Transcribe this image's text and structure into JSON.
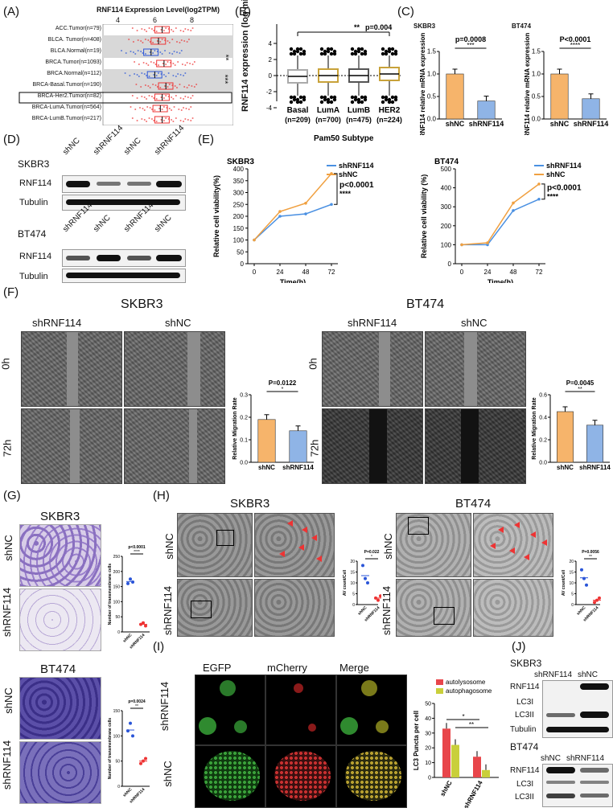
{
  "panels": {
    "A": "(A)",
    "B": "(B)",
    "C": "(C)",
    "D": "(D)",
    "E": "(E)",
    "F": "(F)",
    "G": "(G)",
    "H": "(H)",
    "I": "(I)",
    "J": "(J)"
  },
  "panelA": {
    "title": "RNF114 Expression Level(log2TPM)",
    "ticks": [
      "4",
      "6",
      "8"
    ],
    "rows": [
      "ACC.Tumor(n=79)",
      "BLCA. Tumor(n=408)",
      "BLCA.Normal(n=19)",
      "BRCA.Tumor(n=1093)",
      "BRCA.Normal(n=112)",
      "BRCA-Basal.Tumor(n=190)",
      "BRCA-Her2.Tumor(n=82)",
      "BRCA-LumA.Tumor(n=564)",
      "BRCA-LumB.Tumor(n=217)"
    ],
    "sig1": "**",
    "sig2": "***"
  },
  "panelB": {
    "ylabel": "RNF114 expression (log microarray)",
    "ticks": [
      "4",
      "2",
      "0",
      "-2",
      "-4"
    ],
    "groups": [
      "Basal",
      "LumA",
      "LumB",
      "HER2"
    ],
    "counts": [
      "(n=209)",
      "(n=700)",
      "(n=475)",
      "(n=224)"
    ],
    "xlabel": "Pam50 Subtype",
    "sig": "**",
    "p": "p=0.004"
  },
  "panelC": {
    "left": {
      "cell": "SKBR3",
      "ylabel": "RNF114 relative mRNA expression",
      "p": "p=0.0008",
      "sig": "***",
      "ticks": [
        "1.5",
        "1.0",
        "0.5",
        "0.0"
      ],
      "x": [
        "shNC",
        "shRNF114"
      ]
    },
    "right": {
      "cell": "BT474",
      "ylabel": "RNF114 relative mRNA expression",
      "p": "P<0.0001",
      "sig": "****",
      "ticks": [
        "1.5",
        "1.0",
        "0.5",
        "0.0"
      ],
      "x": [
        "shNC",
        "shRNF114"
      ]
    }
  },
  "panelD": {
    "skbr3": {
      "cell": "SKBR3",
      "cols": [
        "shNC",
        "shRNF114",
        "shNC",
        "shRNF114"
      ],
      "rows": [
        "RNF114",
        "Tubulin"
      ]
    },
    "bt474": {
      "cell": "BT474",
      "cols": [
        "shRNF114",
        "shNC",
        "shRNF114",
        "shNC"
      ],
      "rows": [
        "RNF114",
        "Tubulin"
      ]
    }
  },
  "panelE": {
    "left": {
      "cell": "SKBR3",
      "ylabel": "Relative cell viability(%)",
      "xlabel": "Time(h)",
      "legend": [
        "shRNF114",
        "shNC"
      ],
      "p": "p<0.0001",
      "sig": "****",
      "yticks": [
        "400",
        "350",
        "300",
        "250",
        "200",
        "150",
        "100",
        "50",
        "0"
      ],
      "xticks": [
        "0",
        "24",
        "48",
        "72"
      ]
    },
    "right": {
      "cell": "BT474",
      "ylabel": "Relative cell viability (%)",
      "xlabel": "Time(h)",
      "legend": [
        "shRNF114",
        "shNC"
      ],
      "p": "p<0.0001",
      "sig": "****",
      "yticks": [
        "500",
        "400",
        "300",
        "200",
        "100",
        "0"
      ],
      "xticks": [
        "0",
        "24",
        "48",
        "72"
      ]
    }
  },
  "panelF": {
    "left": {
      "cell": "SKBR3",
      "cols": [
        "shRNF114",
        "shNC"
      ],
      "rows": [
        "0h",
        "72h"
      ],
      "ylabel": "Relative Migration Rate",
      "p": "P=0.0122",
      "sig": "*",
      "yticks": [
        "0.3",
        "0.2",
        "0.1",
        "0.0"
      ],
      "x": [
        "shNC",
        "shRNF114"
      ]
    },
    "right": {
      "cell": "BT474",
      "cols": [
        "shRNF114",
        "shNC"
      ],
      "rows": [
        "0h",
        "72h"
      ],
      "ylabel": "Relative Migration Rate",
      "p": "P=0.0045",
      "sig": "**",
      "yticks": [
        "0.6",
        "0.4",
        "0.2",
        "0.0"
      ],
      "x": [
        "shNC",
        "shRNF114"
      ]
    }
  },
  "panelG": {
    "top": {
      "cell": "SKBR3",
      "rows": [
        "shNC",
        "shRNF114"
      ],
      "ylabel": "Number of transmembrane cells",
      "p": "p<0.0001",
      "sig": "****",
      "yticks": [
        "250",
        "200",
        "150",
        "100",
        "50",
        "0"
      ],
      "x": [
        "shNC",
        "shRNF114"
      ]
    },
    "bottom": {
      "cell": "BT474",
      "rows": [
        "shNC",
        "shRNF114"
      ],
      "ylabel": "Number of transmembrane cells",
      "p": "p=0.0024",
      "sig": "**",
      "yticks": [
        "150",
        "100",
        "50",
        "0"
      ],
      "x": [
        "shNC",
        "shRNF114"
      ]
    }
  },
  "panelH": {
    "left": {
      "cell": "SKBR3",
      "rows": [
        "shNC",
        "shRNF114"
      ],
      "ylabel": "AV count/Cell",
      "p": "P=0.022",
      "sig": "*",
      "yticks": [
        "20",
        "15",
        "10",
        "5",
        "0"
      ],
      "x": [
        "shNC",
        "shRNF114"
      ]
    },
    "right": {
      "cell": "BT474",
      "rows": [
        "shNC",
        "shRNF114"
      ],
      "ylabel": "AV count/Cell",
      "p": "P=0.0056",
      "sig": "**",
      "yticks": [
        "20",
        "15",
        "10",
        "5",
        "0"
      ],
      "x": [
        "shNC",
        "shRNF114"
      ]
    }
  },
  "panelI": {
    "cols": [
      "EGFP",
      "mCherry",
      "Merge"
    ],
    "rows": [
      "shRNF114",
      "shNC"
    ],
    "ylabel": "LC3 Puncta per cell",
    "legend": [
      "autolysosome",
      "autophagosome"
    ],
    "yticks": [
      "50",
      "40",
      "30",
      "20",
      "10",
      "0"
    ],
    "x": [
      "shNC",
      "shRNF114"
    ],
    "sig1": "*",
    "sig2": "**",
    "colors": {
      "autolysosome": "#e8464b",
      "autophagosome": "#c9cf3a"
    }
  },
  "panelJ": {
    "skbr3": {
      "cell": "SKBR3",
      "cols": [
        "shRNF114",
        "shNC"
      ],
      "rows": [
        "RNF114",
        "LC3I",
        "LC3II",
        "Tubulin"
      ]
    },
    "bt474": {
      "cell": "BT474",
      "cols": [
        "shNC",
        "shRNF114"
      ],
      "rows": [
        "RNF114",
        "LC3I",
        "LC3II",
        "Tubulin"
      ]
    }
  },
  "chart_data": [
    {
      "panel": "C-SKBR3",
      "type": "bar",
      "categories": [
        "shNC",
        "shRNF114"
      ],
      "values": [
        1.0,
        0.4
      ],
      "ylim": [
        0,
        1.5
      ],
      "ylabel": "RNF114 relative mRNA expression"
    },
    {
      "panel": "C-BT474",
      "type": "bar",
      "categories": [
        "shNC",
        "shRNF114"
      ],
      "values": [
        1.0,
        0.45
      ],
      "ylim": [
        0,
        1.5
      ],
      "ylabel": "RNF114 relative mRNA expression"
    },
    {
      "panel": "E-SKBR3",
      "type": "line",
      "x": [
        0,
        24,
        48,
        72
      ],
      "series": [
        {
          "name": "shRNF114",
          "values": [
            100,
            200,
            210,
            250
          ]
        },
        {
          "name": "shNC",
          "values": [
            100,
            220,
            255,
            380
          ]
        }
      ],
      "ylim": [
        0,
        400
      ],
      "xlabel": "Time(h)",
      "ylabel": "Relative cell viability(%)"
    },
    {
      "panel": "E-BT474",
      "type": "line",
      "x": [
        0,
        24,
        48,
        72
      ],
      "series": [
        {
          "name": "shRNF114",
          "values": [
            100,
            100,
            280,
            340
          ]
        },
        {
          "name": "shNC",
          "values": [
            100,
            110,
            320,
            420
          ]
        }
      ],
      "ylim": [
        0,
        500
      ],
      "xlabel": "Time(h)",
      "ylabel": "Relative cell viability (%)"
    },
    {
      "panel": "F-SKBR3",
      "type": "bar",
      "categories": [
        "shNC",
        "shRNF114"
      ],
      "values": [
        0.19,
        0.14
      ],
      "ylim": [
        0,
        0.3
      ],
      "ylabel": "Relative Migration Rate"
    },
    {
      "panel": "F-BT474",
      "type": "bar",
      "categories": [
        "shNC",
        "shRNF114"
      ],
      "values": [
        0.45,
        0.33
      ],
      "ylim": [
        0,
        0.6
      ],
      "ylabel": "Relative Migration Rate"
    },
    {
      "panel": "G-SKBR3",
      "type": "scatter",
      "categories": [
        "shNC",
        "shRNF114"
      ],
      "values": [
        [
          160,
          175,
          165
        ],
        [
          25,
          30,
          20
        ]
      ],
      "ylim": [
        0,
        250
      ],
      "ylabel": "Number of transmembrane cells"
    },
    {
      "panel": "G-BT474",
      "type": "scatter",
      "categories": [
        "shNC",
        "shRNF114"
      ],
      "values": [
        [
          110,
          125,
          100
        ],
        [
          45,
          50,
          55
        ]
      ],
      "ylim": [
        0,
        150
      ],
      "ylabel": "Number of transmembrane cells"
    },
    {
      "panel": "H-SKBR3",
      "type": "scatter",
      "categories": [
        "shNC",
        "shRNF114"
      ],
      "values": [
        [
          18,
          12,
          10
        ],
        [
          3,
          2,
          4
        ]
      ],
      "ylim": [
        0,
        20
      ],
      "ylabel": "AV count/Cell"
    },
    {
      "panel": "H-BT474",
      "type": "scatter",
      "categories": [
        "shNC",
        "shRNF114"
      ],
      "values": [
        [
          16,
          12,
          9
        ],
        [
          1,
          2,
          3
        ]
      ],
      "ylim": [
        0,
        20
      ],
      "ylabel": "AV count/Cell"
    },
    {
      "panel": "I",
      "type": "bar",
      "categories": [
        "shNC",
        "shRNF114"
      ],
      "series": [
        {
          "name": "autolysosome",
          "values": [
            33,
            14
          ]
        },
        {
          "name": "autophagosome",
          "values": [
            22,
            5
          ]
        }
      ],
      "ylim": [
        0,
        50
      ],
      "ylabel": "LC3 Puncta per cell"
    }
  ]
}
